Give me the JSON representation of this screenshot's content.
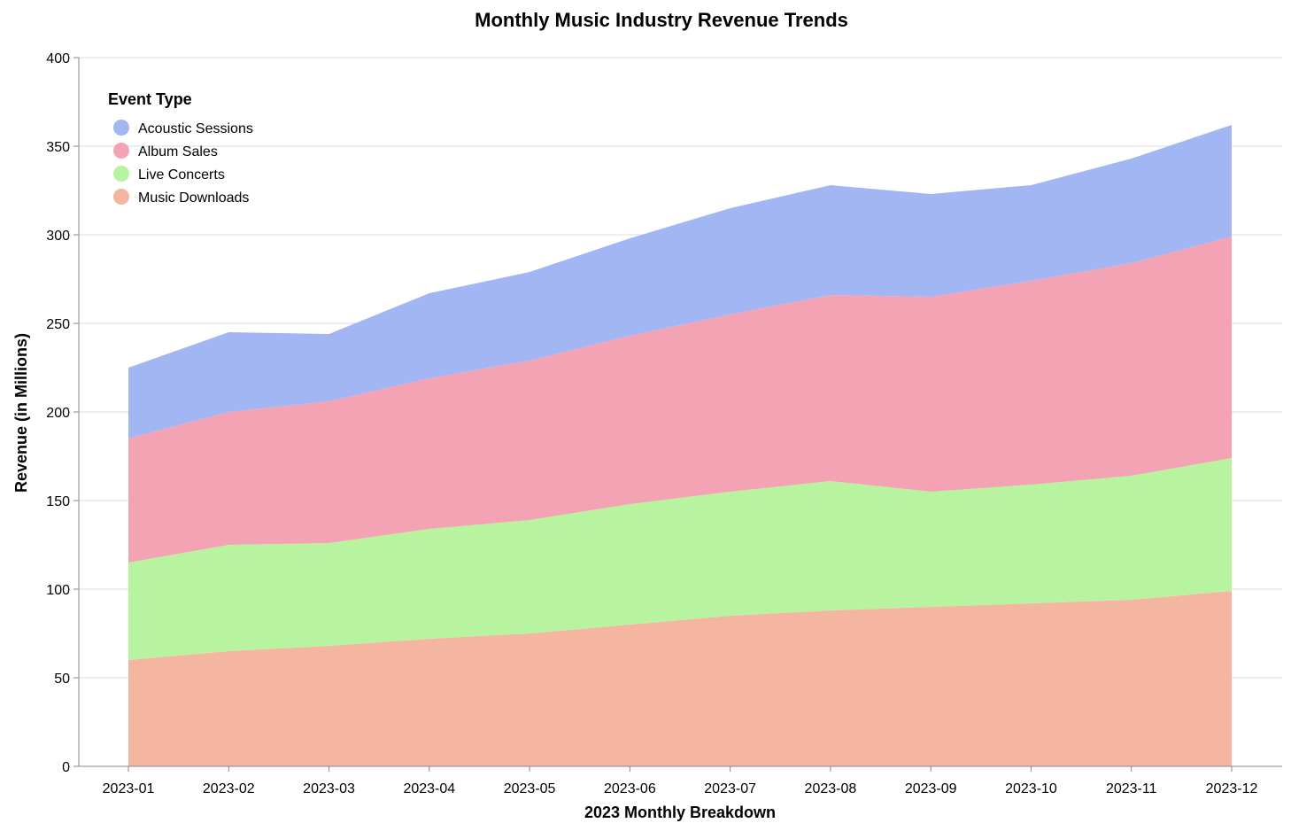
{
  "chart_data": {
    "type": "area",
    "stacked": true,
    "title": "Monthly Music Industry Revenue Trends",
    "xlabel": "2023 Monthly Breakdown",
    "ylabel": "Revenue (in Millions)",
    "ylim": [
      0,
      400
    ],
    "yticks": [
      0,
      50,
      100,
      150,
      200,
      250,
      300,
      350,
      400
    ],
    "grid": true,
    "legend": {
      "title": "Event Type",
      "placement": "top-left"
    },
    "categories": [
      "2023-01",
      "2023-02",
      "2023-03",
      "2023-04",
      "2023-05",
      "2023-06",
      "2023-07",
      "2023-08",
      "2023-09",
      "2023-10",
      "2023-11",
      "2023-12"
    ],
    "series": [
      {
        "name": "Music Downloads",
        "color": "#f4b6a0",
        "values": [
          60,
          65,
          68,
          72,
          75,
          80,
          85,
          88,
          90,
          92,
          94,
          99
        ]
      },
      {
        "name": "Live Concerts",
        "color": "#b8f4a0",
        "values": [
          55,
          60,
          58,
          62,
          64,
          68,
          70,
          73,
          65,
          67,
          70,
          75
        ]
      },
      {
        "name": "Album Sales",
        "color": "#f4a3b5",
        "values": [
          70,
          75,
          80,
          85,
          90,
          95,
          100,
          105,
          110,
          115,
          120,
          125
        ]
      },
      {
        "name": "Acoustic Sessions",
        "color": "#a3b6f4",
        "values": [
          40,
          45,
          38,
          48,
          50,
          55,
          60,
          62,
          58,
          54,
          59,
          63
        ]
      }
    ],
    "legend_order": [
      "Acoustic Sessions",
      "Album Sales",
      "Live Concerts",
      "Music Downloads"
    ]
  }
}
